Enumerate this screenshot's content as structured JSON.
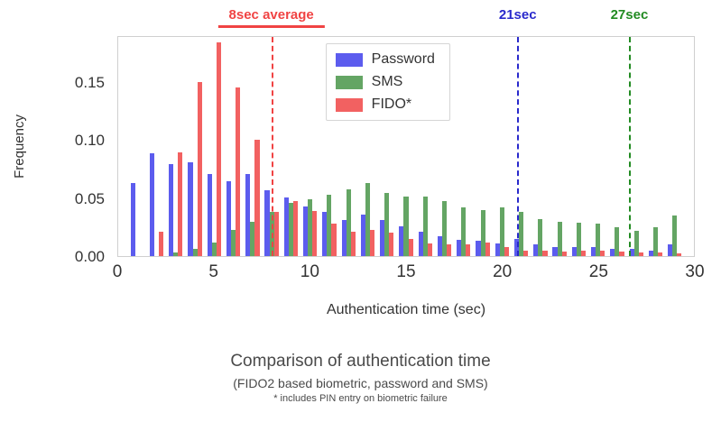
{
  "chart_data": {
    "type": "bar",
    "title": "Comparison of authentication time",
    "subtitle": "(FIDO2 based biometric, password and SMS)",
    "footnote": "* includes PIN entry on biometric failure",
    "xlabel": "Authentication time (sec)",
    "ylabel": "Frequency",
    "xlim": [
      0,
      30
    ],
    "ylim": [
      0,
      0.19
    ],
    "grid": false,
    "legend_position": "top-center-inside",
    "xticks": [
      {
        "v": 0,
        "label": "0"
      },
      {
        "v": 5,
        "label": "5"
      },
      {
        "v": 10,
        "label": "10"
      },
      {
        "v": 15,
        "label": "15"
      },
      {
        "v": 20,
        "label": "20"
      },
      {
        "v": 25,
        "label": "25"
      },
      {
        "v": 30,
        "label": "30"
      }
    ],
    "yticks": [
      {
        "v": 0.0,
        "label": "0.00"
      },
      {
        "v": 0.05,
        "label": "0.05"
      },
      {
        "v": 0.1,
        "label": "0.10"
      },
      {
        "v": 0.15,
        "label": "0.15"
      }
    ],
    "x": [
      1,
      2,
      3,
      4,
      5,
      6,
      7,
      8,
      9,
      10,
      11,
      12,
      13,
      14,
      15,
      16,
      17,
      18,
      19,
      20,
      21,
      22,
      23,
      24,
      25,
      26,
      27,
      28,
      29
    ],
    "series": [
      {
        "name": "Password",
        "color": "#5c5cee",
        "values": [
          0.063,
          0.089,
          0.08,
          0.081,
          0.071,
          0.065,
          0.071,
          0.057,
          0.051,
          0.043,
          0.038,
          0.031,
          0.036,
          0.031,
          0.026,
          0.021,
          0.017,
          0.014,
          0.013,
          0.011,
          0.015,
          0.01,
          0.008,
          0.008,
          0.008,
          0.006,
          0.006,
          0.005,
          0.01
        ]
      },
      {
        "name": "SMS",
        "color": "#64a564",
        "values": [
          0,
          0,
          0.003,
          0.006,
          0.012,
          0.023,
          0.03,
          0.038,
          0.046,
          0.049,
          0.053,
          0.058,
          0.063,
          0.055,
          0.052,
          0.052,
          0.048,
          0.042,
          0.04,
          0.042,
          0.038,
          0.032,
          0.03,
          0.029,
          0.028,
          0.025,
          0.022,
          0.025,
          0.035
        ]
      },
      {
        "name": "FIDO*",
        "color": "#f26161",
        "values": [
          0,
          0.021,
          0.09,
          0.151,
          0.185,
          0.146,
          0.101,
          0.038,
          0.048,
          0.039,
          0.028,
          0.021,
          0.023,
          0.02,
          0.015,
          0.011,
          0.01,
          0.01,
          0.012,
          0.008,
          0.005,
          0.005,
          0.004,
          0.005,
          0.005,
          0.004,
          0.003,
          0.003,
          0.002
        ]
      }
    ],
    "annotations": [
      {
        "label": "8sec average",
        "x": 8,
        "color": "#f04343",
        "underline": true
      },
      {
        "label": "21sec",
        "x": 20.8,
        "color": "#2929cc",
        "underline": false
      },
      {
        "label": "27sec",
        "x": 26.6,
        "color": "#228b22",
        "underline": false
      }
    ]
  }
}
